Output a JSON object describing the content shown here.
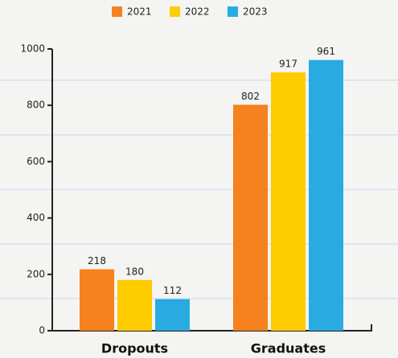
{
  "chart_data": {
    "type": "bar",
    "categories": [
      "Dropouts",
      "Graduates"
    ],
    "series": [
      {
        "name": "2021",
        "color": "#f5821f",
        "values": [
          218,
          802
        ]
      },
      {
        "name": "2022",
        "color": "#ffcc00",
        "values": [
          180,
          917
        ]
      },
      {
        "name": "2023",
        "color": "#29abe2",
        "values": [
          112,
          961
        ]
      }
    ],
    "ylim": [
      0,
      1000
    ],
    "yticks": [
      0,
      200,
      400,
      600,
      800,
      1000
    ],
    "legend": "top"
  }
}
